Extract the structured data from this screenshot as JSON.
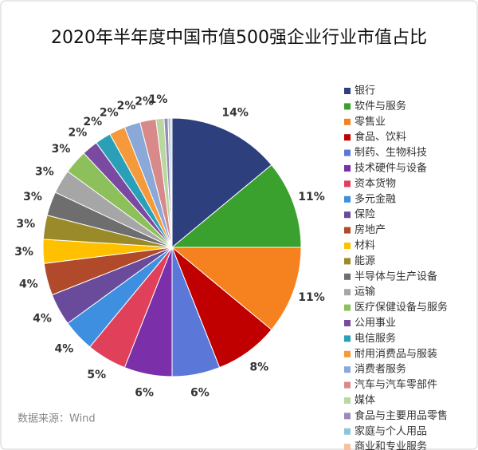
{
  "chart_data": {
    "type": "pie",
    "title": "2020年半年度中国市值500强企业行业市值占比",
    "categories": [
      "银行",
      "软件与服务",
      "零售业",
      "食品、饮料",
      "制药、生物科技",
      "技术硬件与设备",
      "资本货物",
      "多元金融",
      "保险",
      "房地产",
      "材料",
      "能源",
      "半导体与生产设备",
      "运输",
      "医疗保健设备与服务",
      "公用事业",
      "电信服务",
      "耐用消费品与服装",
      "消费者服务",
      "汽车与汽车零部件",
      "媒体",
      "食品与主要用品零售",
      "家庭与个人用品",
      "商业和专业服务"
    ],
    "values": [
      14,
      11,
      11,
      8,
      6,
      6,
      5,
      4,
      4,
      4,
      3,
      3,
      3,
      3,
      3,
      2,
      2,
      2,
      2,
      2,
      1,
      0.5,
      0.3,
      0.2
    ],
    "value_labels": [
      "14%",
      "11%",
      "11%",
      "8%",
      "6%",
      "6%",
      "5%",
      "4%",
      "4%",
      "4%",
      "3%",
      "3%",
      "3%",
      "3%",
      "3%",
      "2%",
      "2%",
      "2%",
      "2%",
      "2%",
      "1%",
      null,
      null,
      null
    ],
    "colors": [
      "#2e3f7e",
      "#3aa02e",
      "#f5821f",
      "#c00000",
      "#5b78d8",
      "#7b2fa8",
      "#e0405a",
      "#3f8fe0",
      "#6a4a9a",
      "#b04a2a",
      "#ffc000",
      "#9a8a2a",
      "#6e6e6e",
      "#a6a6a6",
      "#8dc05a",
      "#7a4aa0",
      "#2aa0b8",
      "#f59a3a",
      "#8aa8d8",
      "#d88a8a",
      "#b8d8a0",
      "#9a8ab8",
      "#8ac8d8",
      "#f8c0a0"
    ],
    "source": "数据来源：Wind"
  }
}
